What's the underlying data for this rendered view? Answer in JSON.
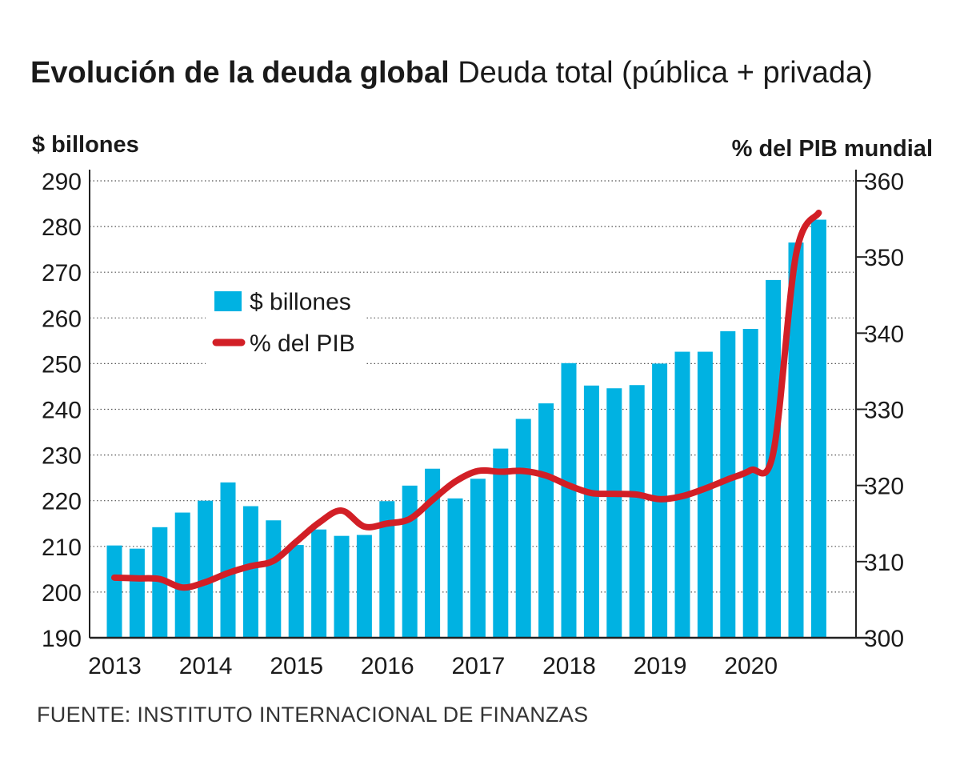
{
  "title": {
    "bold": "Evolución de la deuda global",
    "light": "Deuda total (pública + privada)"
  },
  "source": "FUENTE: INSTITUTO INTERNACIONAL DE FINANZAS",
  "colors": {
    "bars": "#00b2e2",
    "line": "#d21f26",
    "axis": "#222222",
    "grid": "#555555"
  },
  "chart_data": {
    "type": "bar+line",
    "left_axis": {
      "label": "$ billones",
      "ylim": [
        190,
        290
      ],
      "ticks": [
        190,
        200,
        210,
        220,
        230,
        240,
        250,
        260,
        270,
        280,
        290
      ]
    },
    "right_axis": {
      "label": "% del PIB mundial",
      "ylim": [
        300,
        360
      ],
      "ticks": [
        300,
        310,
        320,
        330,
        340,
        350,
        360
      ]
    },
    "x_tick_labels": [
      "2013",
      "2014",
      "2015",
      "2016",
      "2017",
      "2018",
      "2019",
      "2020"
    ],
    "grid": "horizontal dotted",
    "legend": {
      "position": "upper-left",
      "entries": [
        "$ billones",
        "% del PIB"
      ]
    },
    "series": [
      {
        "name": "$ billones",
        "type": "bar",
        "axis": "left",
        "values": [
          210.2,
          209.5,
          214.2,
          217.4,
          220.0,
          224.0,
          218.8,
          215.7,
          210.3,
          213.7,
          212.3,
          212.5,
          219.9,
          223.3,
          227.0,
          220.5,
          224.8,
          231.4,
          237.9,
          241.3,
          250.1,
          245.2,
          244.6,
          245.3,
          250.0,
          252.6,
          252.6,
          257.1,
          257.6,
          268.3,
          276.5,
          281.5
        ]
      },
      {
        "name": "% del PIB",
        "type": "line",
        "axis": "right",
        "values": [
          307.9,
          307.8,
          307.7,
          306.6,
          307.3,
          308.5,
          309.4,
          310.1,
          312.6,
          315.1,
          316.7,
          314.6,
          315.0,
          315.6,
          318.1,
          320.5,
          321.9,
          321.8,
          321.9,
          321.3,
          320.0,
          319.0,
          318.9,
          318.8,
          318.2,
          318.6,
          319.6,
          320.8,
          322.0,
          324.3,
          350.3,
          355.8
        ]
      }
    ]
  }
}
